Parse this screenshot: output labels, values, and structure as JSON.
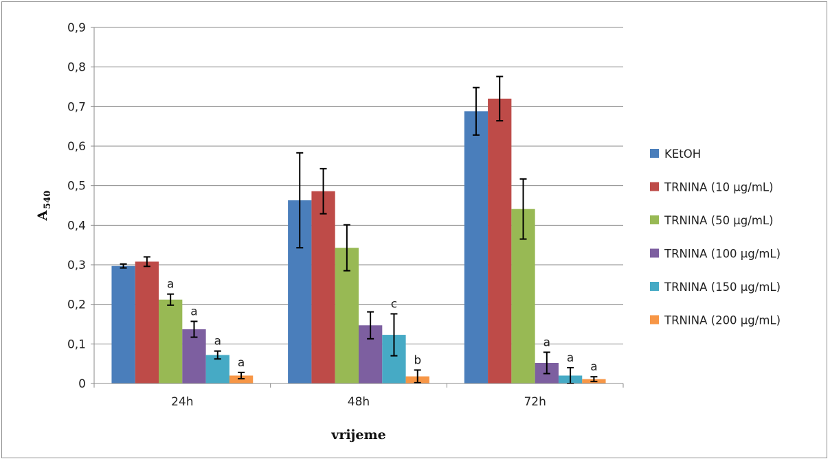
{
  "chart_data": {
    "type": "bar",
    "categories": [
      "24h",
      "48h",
      "72h"
    ],
    "xlabel": "vrijeme",
    "ylabel": "A",
    "ylabel_sub": "540",
    "ylim": [
      0,
      0.9
    ],
    "y_ticks": [
      "0",
      "0,1",
      "0,2",
      "0,3",
      "0,4",
      "0,5",
      "0,6",
      "0,7",
      "0,8",
      "0,9"
    ],
    "y_tick_values": [
      0,
      0.1,
      0.2,
      0.3,
      0.4,
      0.5,
      0.6,
      0.7,
      0.8,
      0.9
    ],
    "grid": true,
    "legend_position": "right",
    "series": [
      {
        "name": "KEtOH",
        "color": "#4a7ebb",
        "values": [
          0.297,
          0.463,
          0.688
        ],
        "errors": [
          0.005,
          0.12,
          0.06
        ],
        "labels": [
          "",
          "",
          ""
        ]
      },
      {
        "name": "TRNINA (10 µg/mL)",
        "color": "#be4b48",
        "values": [
          0.308,
          0.486,
          0.72
        ],
        "errors": [
          0.012,
          0.057,
          0.056
        ],
        "labels": [
          "",
          "",
          ""
        ]
      },
      {
        "name": "TRNINA (50 µg/mL)",
        "color": "#98b954",
        "values": [
          0.212,
          0.343,
          0.441
        ],
        "errors": [
          0.014,
          0.058,
          0.076
        ],
        "labels": [
          "a",
          "",
          ""
        ]
      },
      {
        "name": "TRNINA (100 µg/mL)",
        "color": "#7d5fa0",
        "values": [
          0.137,
          0.147,
          0.052
        ],
        "errors": [
          0.02,
          0.034,
          0.027
        ],
        "labels": [
          "a",
          "",
          "a"
        ]
      },
      {
        "name": "TRNINA (150 µg/mL)",
        "color": "#46aac5",
        "values": [
          0.072,
          0.123,
          0.02
        ],
        "errors": [
          0.01,
          0.053,
          0.02
        ],
        "labels": [
          "a",
          "c",
          "a"
        ]
      },
      {
        "name": "TRNINA (200 µg/mL)",
        "color": "#f79646",
        "values": [
          0.02,
          0.018,
          0.011
        ],
        "errors": [
          0.008,
          0.016,
          0.006
        ],
        "labels": [
          "a",
          "b",
          "a"
        ]
      }
    ]
  }
}
